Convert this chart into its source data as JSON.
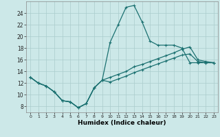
{
  "xlabel": "Humidex (Indice chaleur)",
  "background_color": "#cce8e8",
  "grid_color": "#aacccc",
  "line_color": "#1a7070",
  "xlim": [
    -0.5,
    23.5
  ],
  "ylim": [
    7,
    26
  ],
  "yticks": [
    8,
    10,
    12,
    14,
    16,
    18,
    20,
    22,
    24
  ],
  "xticks": [
    0,
    1,
    2,
    3,
    4,
    5,
    6,
    7,
    8,
    9,
    10,
    11,
    12,
    13,
    14,
    15,
    16,
    17,
    18,
    19,
    20,
    21,
    22,
    23
  ],
  "line1_x": [
    0,
    1,
    2,
    3,
    4,
    5,
    6,
    7,
    8,
    9,
    10,
    11,
    12,
    13,
    14,
    15,
    16,
    17,
    18,
    19,
    20,
    21,
    22,
    23
  ],
  "line1_y": [
    13.0,
    12.0,
    11.5,
    10.5,
    9.0,
    8.8,
    7.8,
    8.5,
    11.2,
    12.5,
    19.0,
    22.0,
    25.0,
    25.3,
    22.5,
    19.2,
    18.5,
    18.5,
    18.5,
    18.0,
    15.5,
    15.5,
    15.5,
    15.5
  ],
  "line2_x": [
    0,
    1,
    2,
    3,
    4,
    5,
    6,
    7,
    8,
    9,
    10,
    11,
    12,
    13,
    14,
    15,
    16,
    17,
    18,
    19,
    20,
    21,
    22,
    23
  ],
  "line2_y": [
    13.0,
    12.0,
    11.5,
    10.5,
    9.0,
    8.8,
    7.8,
    8.5,
    11.2,
    12.5,
    13.0,
    13.5,
    14.0,
    14.8,
    15.2,
    15.7,
    16.2,
    16.7,
    17.2,
    17.8,
    18.2,
    16.0,
    15.7,
    15.5
  ],
  "line3_x": [
    0,
    1,
    2,
    3,
    4,
    5,
    6,
    7,
    8,
    9,
    10,
    11,
    12,
    13,
    14,
    15,
    16,
    17,
    18,
    19,
    20,
    21,
    22,
    23
  ],
  "line3_y": [
    13.0,
    12.0,
    11.5,
    10.5,
    9.0,
    8.8,
    7.8,
    8.5,
    11.2,
    12.5,
    12.2,
    12.7,
    13.2,
    13.8,
    14.3,
    14.8,
    15.3,
    15.8,
    16.3,
    16.8,
    17.0,
    15.7,
    15.5,
    15.5
  ]
}
